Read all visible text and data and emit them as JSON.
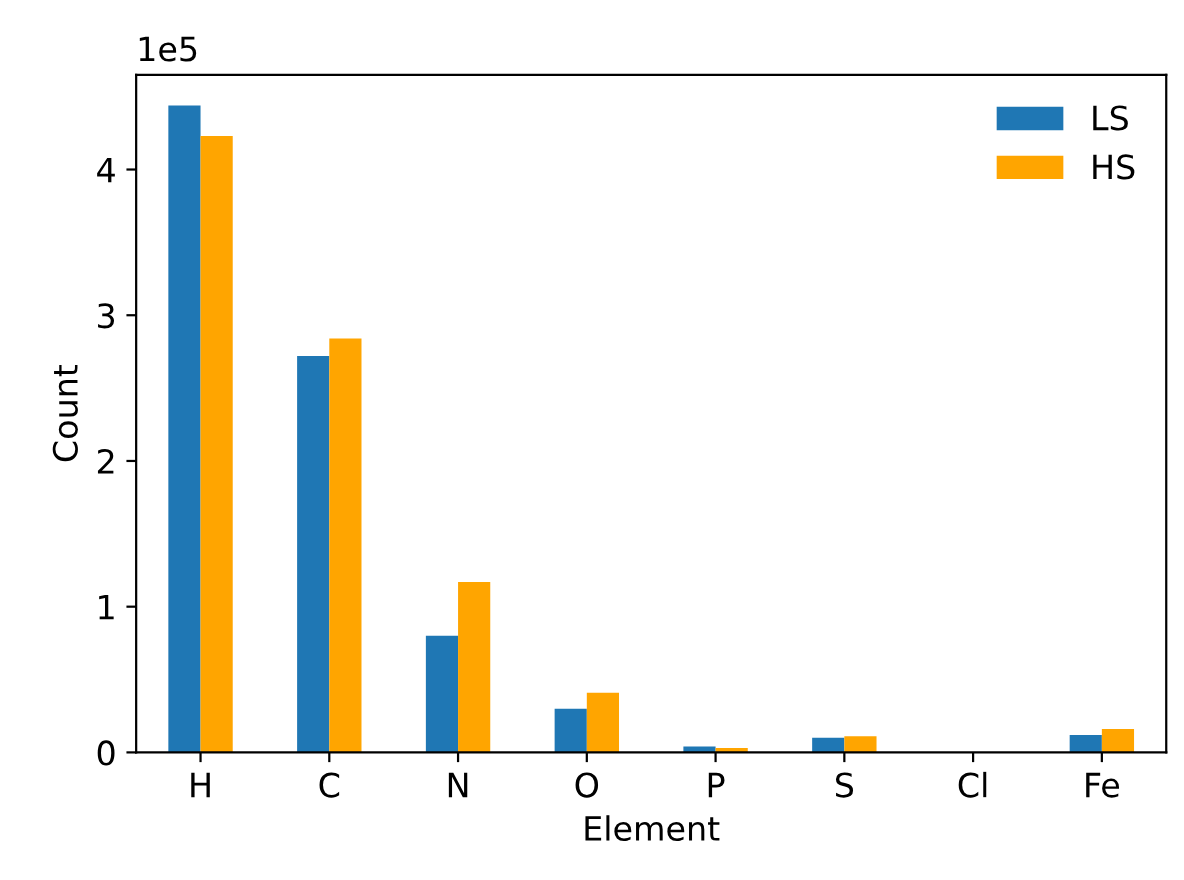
{
  "chart_data": {
    "type": "bar",
    "xlabel": "Element",
    "ylabel": "Count",
    "categories": [
      "H",
      "C",
      "N",
      "O",
      "P",
      "S",
      "Cl",
      "Fe"
    ],
    "series": [
      {
        "name": "LS",
        "color": "#1f77b4",
        "values": [
          4.44,
          2.72,
          0.8,
          0.3,
          0.04,
          0.1,
          0,
          0.12
        ]
      },
      {
        "name": "HS",
        "color": "#ffa500",
        "values": [
          4.23,
          2.84,
          1.17,
          0.41,
          0.03,
          0.11,
          0,
          0.16
        ]
      }
    ],
    "ylim": [
      0,
      4.65
    ],
    "yticks": [
      0,
      1,
      2,
      3,
      4
    ],
    "annotations": [
      "1e5"
    ],
    "legend": "top right",
    "grid": false
  }
}
